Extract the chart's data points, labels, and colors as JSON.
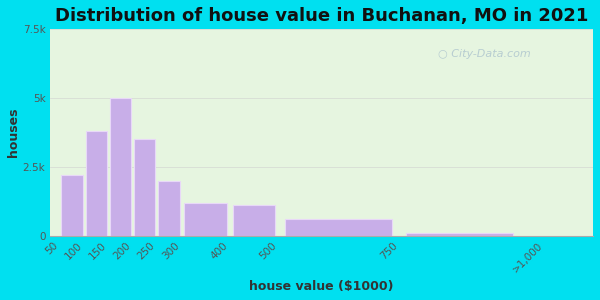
{
  "title": "Distribution of house value in Buchanan, MO in 2021",
  "xlabel": "house value ($1000)",
  "ylabel": "houses",
  "bar_lefts": [
    50,
    100,
    150,
    200,
    250,
    300,
    400,
    500,
    750
  ],
  "bar_widths": [
    50,
    50,
    50,
    50,
    50,
    100,
    100,
    250,
    250
  ],
  "bar_values": [
    2200,
    3800,
    5000,
    3500,
    2000,
    1200,
    1100,
    600,
    100
  ],
  "xtick_positions": [
    50,
    100,
    150,
    200,
    250,
    300,
    400,
    500,
    750,
    1050
  ],
  "xtick_labels": [
    "50",
    "100",
    "150",
    "200",
    "250",
    "300",
    "400",
    "500",
    "750",
    ">1,000"
  ],
  "bar_color": "#c8aee8",
  "bar_edgecolor": "#e8d8f8",
  "ylim": [
    0,
    7500
  ],
  "xlim": [
    30,
    1150
  ],
  "yticks": [
    0,
    2500,
    5000,
    7500
  ],
  "ytick_labels": [
    "0",
    "2.5k",
    "5k",
    "7.5k"
  ],
  "background_outer": "#00e0f0",
  "background_inner": "#e6f5e0",
  "title_fontsize": 13,
  "axis_label_fontsize": 9,
  "watermark": "City-Data.com"
}
